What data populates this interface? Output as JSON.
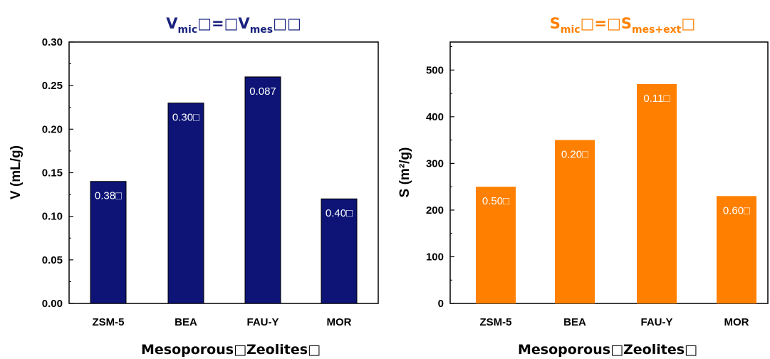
{
  "chart_data": [
    {
      "type": "bar",
      "title": {
        "main": "V",
        "sub1": "mic",
        "mid": "□=□V",
        "sub2": "mes",
        "end": "□□"
      },
      "title_color": "#1a237e",
      "bar_color": "#0d1475",
      "categories": [
        "ZSM-5",
        "BEA",
        "FAU-Y",
        "MOR"
      ],
      "values": [
        0.14,
        0.23,
        0.26,
        0.12
      ],
      "data_labels": [
        "0.38□",
        "0.30□",
        "0.087",
        "0.40□"
      ],
      "xlabel": "Mesoporous□Zeolites□",
      "ylabel": "V (mL/g)",
      "ylim": [
        0,
        0.3
      ],
      "yticks": [
        0.0,
        0.05,
        0.1,
        0.15,
        0.2,
        0.25,
        0.3
      ],
      "ytick_labels": [
        "0.00",
        "0.05",
        "0.10",
        "0.15",
        "0.20",
        "0.25",
        "0.30"
      ],
      "grid": false
    },
    {
      "type": "bar",
      "title": {
        "main": "S",
        "sub1": "mic",
        "mid": "□=□S",
        "sub2": "mes+ext",
        "end": "□"
      },
      "title_color": "#ff8000",
      "bar_color": "#ff8000",
      "categories": [
        "ZSM-5",
        "BEA",
        "FAU-Y",
        "MOR"
      ],
      "values": [
        250,
        350,
        470,
        230
      ],
      "data_labels": [
        "0.50□",
        "0.20□",
        "0.11□",
        "0.60□"
      ],
      "xlabel": "Mesoporous□Zeolites□",
      "ylabel": "S (m²/g)",
      "ylim": [
        0,
        560
      ],
      "yticks": [
        0,
        100,
        200,
        300,
        400,
        500
      ],
      "ytick_labels": [
        "0",
        "100",
        "200",
        "300",
        "400",
        "500"
      ],
      "grid": false
    }
  ]
}
